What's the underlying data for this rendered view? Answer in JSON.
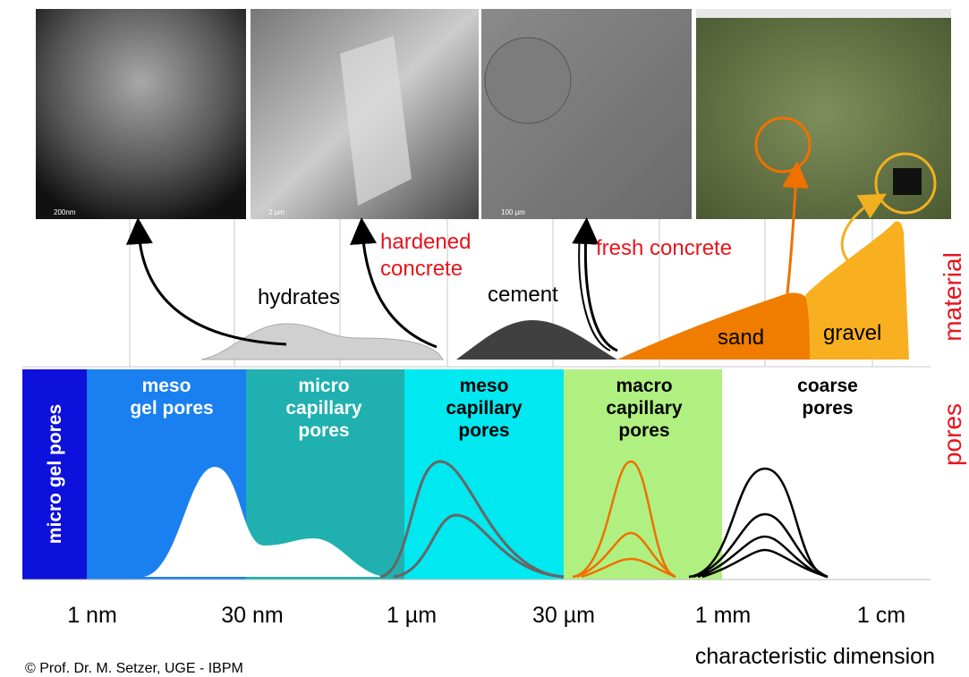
{
  "photos": [
    {
      "scale_label": "200nm"
    },
    {
      "scale_label": "2 µm"
    },
    {
      "scale_label": "100 µm"
    }
  ],
  "material": {
    "axis_label": "material",
    "hardened_concrete": [
      "hardened",
      "concrete"
    ],
    "fresh_concrete": "fresh concrete",
    "components": [
      "hydrates",
      "cement",
      "sand",
      "gravel"
    ]
  },
  "pores": {
    "axis_label": "pores",
    "classes": [
      [
        "micro gel pores"
      ],
      [
        "meso",
        "gel pores"
      ],
      [
        "micro",
        "capillary",
        "pores"
      ],
      [
        "meso",
        "capillary",
        "pores"
      ],
      [
        "macro",
        "capillary",
        "pores"
      ],
      [
        "coarse",
        "pores"
      ]
    ]
  },
  "axis": {
    "ticks": [
      "1 nm",
      "30 nm",
      "1 µm",
      "30 µm",
      "1 mm",
      "1 cm"
    ],
    "label": "characteristic dimension"
  },
  "footer": "© Prof. Dr. M. Setzer, UGE - IBPM"
}
